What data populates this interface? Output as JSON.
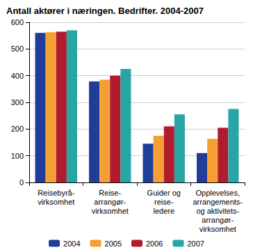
{
  "chart_data": {
    "type": "bar",
    "title": "Antall aktører i næringen. Bedrifter. 2004-2007",
    "categories": [
      "Reisebyrå-\nvirksomhet",
      "Reise-\narrangør-\nvirksomhet",
      "Guider og\nreise-\nledere",
      "Opplevelses,\narrangements-\nog aktivitets-\narrangør-\nvirksomhet"
    ],
    "series": [
      {
        "name": "2004",
        "color": "#1f3d99",
        "values": [
          560,
          378,
          145,
          110
        ]
      },
      {
        "name": "2005",
        "color": "#f5a033",
        "values": [
          563,
          385,
          175,
          163
        ]
      },
      {
        "name": "2006",
        "color": "#b01c2e",
        "values": [
          565,
          400,
          210,
          205
        ]
      },
      {
        "name": "2007",
        "color": "#2aa5a5",
        "values": [
          570,
          425,
          255,
          275
        ]
      }
    ],
    "ylim": [
      0,
      600
    ],
    "yticks": [
      0,
      100,
      200,
      300,
      400,
      500,
      600
    ],
    "grid": true,
    "legend": "bottom"
  }
}
